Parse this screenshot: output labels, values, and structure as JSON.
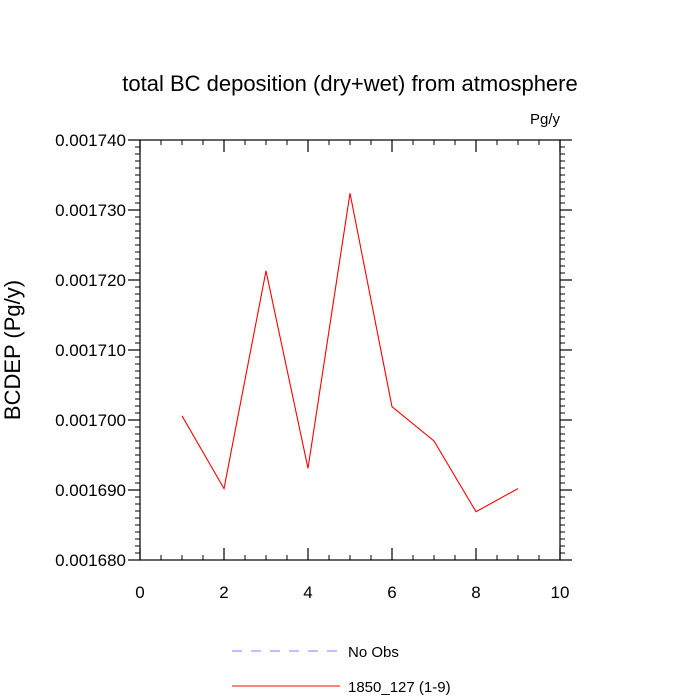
{
  "chart_data": {
    "type": "line",
    "title": "total BC deposition (dry+wet) from atmosphere",
    "units_label": "Pg/y",
    "ylabel": "BCDEP  (Pg/y)",
    "xlabel": "",
    "xlim": [
      0,
      10
    ],
    "ylim": [
      0.00168,
      0.00174
    ],
    "x_ticks": [
      0,
      2,
      4,
      6,
      8,
      10
    ],
    "x_tick_labels": [
      "0",
      "2",
      "4",
      "6",
      "8",
      "10"
    ],
    "y_ticks": [
      0.00168,
      0.00169,
      0.0017,
      0.00171,
      0.00172,
      0.00173,
      0.00174
    ],
    "y_tick_labels": [
      "0.001680",
      "0.001690",
      "0.001700",
      "0.001710",
      "0.001720",
      "0.001730",
      "0.001740"
    ],
    "grid": false,
    "legend_position": "bottom",
    "series": [
      {
        "name": "1850_127 (1-9)",
        "color": "#ff0000",
        "dash": "solid",
        "x": [
          1,
          2,
          3,
          4,
          5,
          6,
          7,
          8,
          9
        ],
        "y": [
          0.0017006,
          0.0016902,
          0.0017213,
          0.0016931,
          0.0017324,
          0.0017019,
          0.001697,
          0.0016869,
          0.0016902
        ]
      }
    ],
    "legend": [
      {
        "label": "No Obs",
        "color": "#8080ff",
        "dash": "dashed"
      },
      {
        "label": "1850_127 (1-9)",
        "color": "#ff0000",
        "dash": "solid"
      }
    ]
  }
}
